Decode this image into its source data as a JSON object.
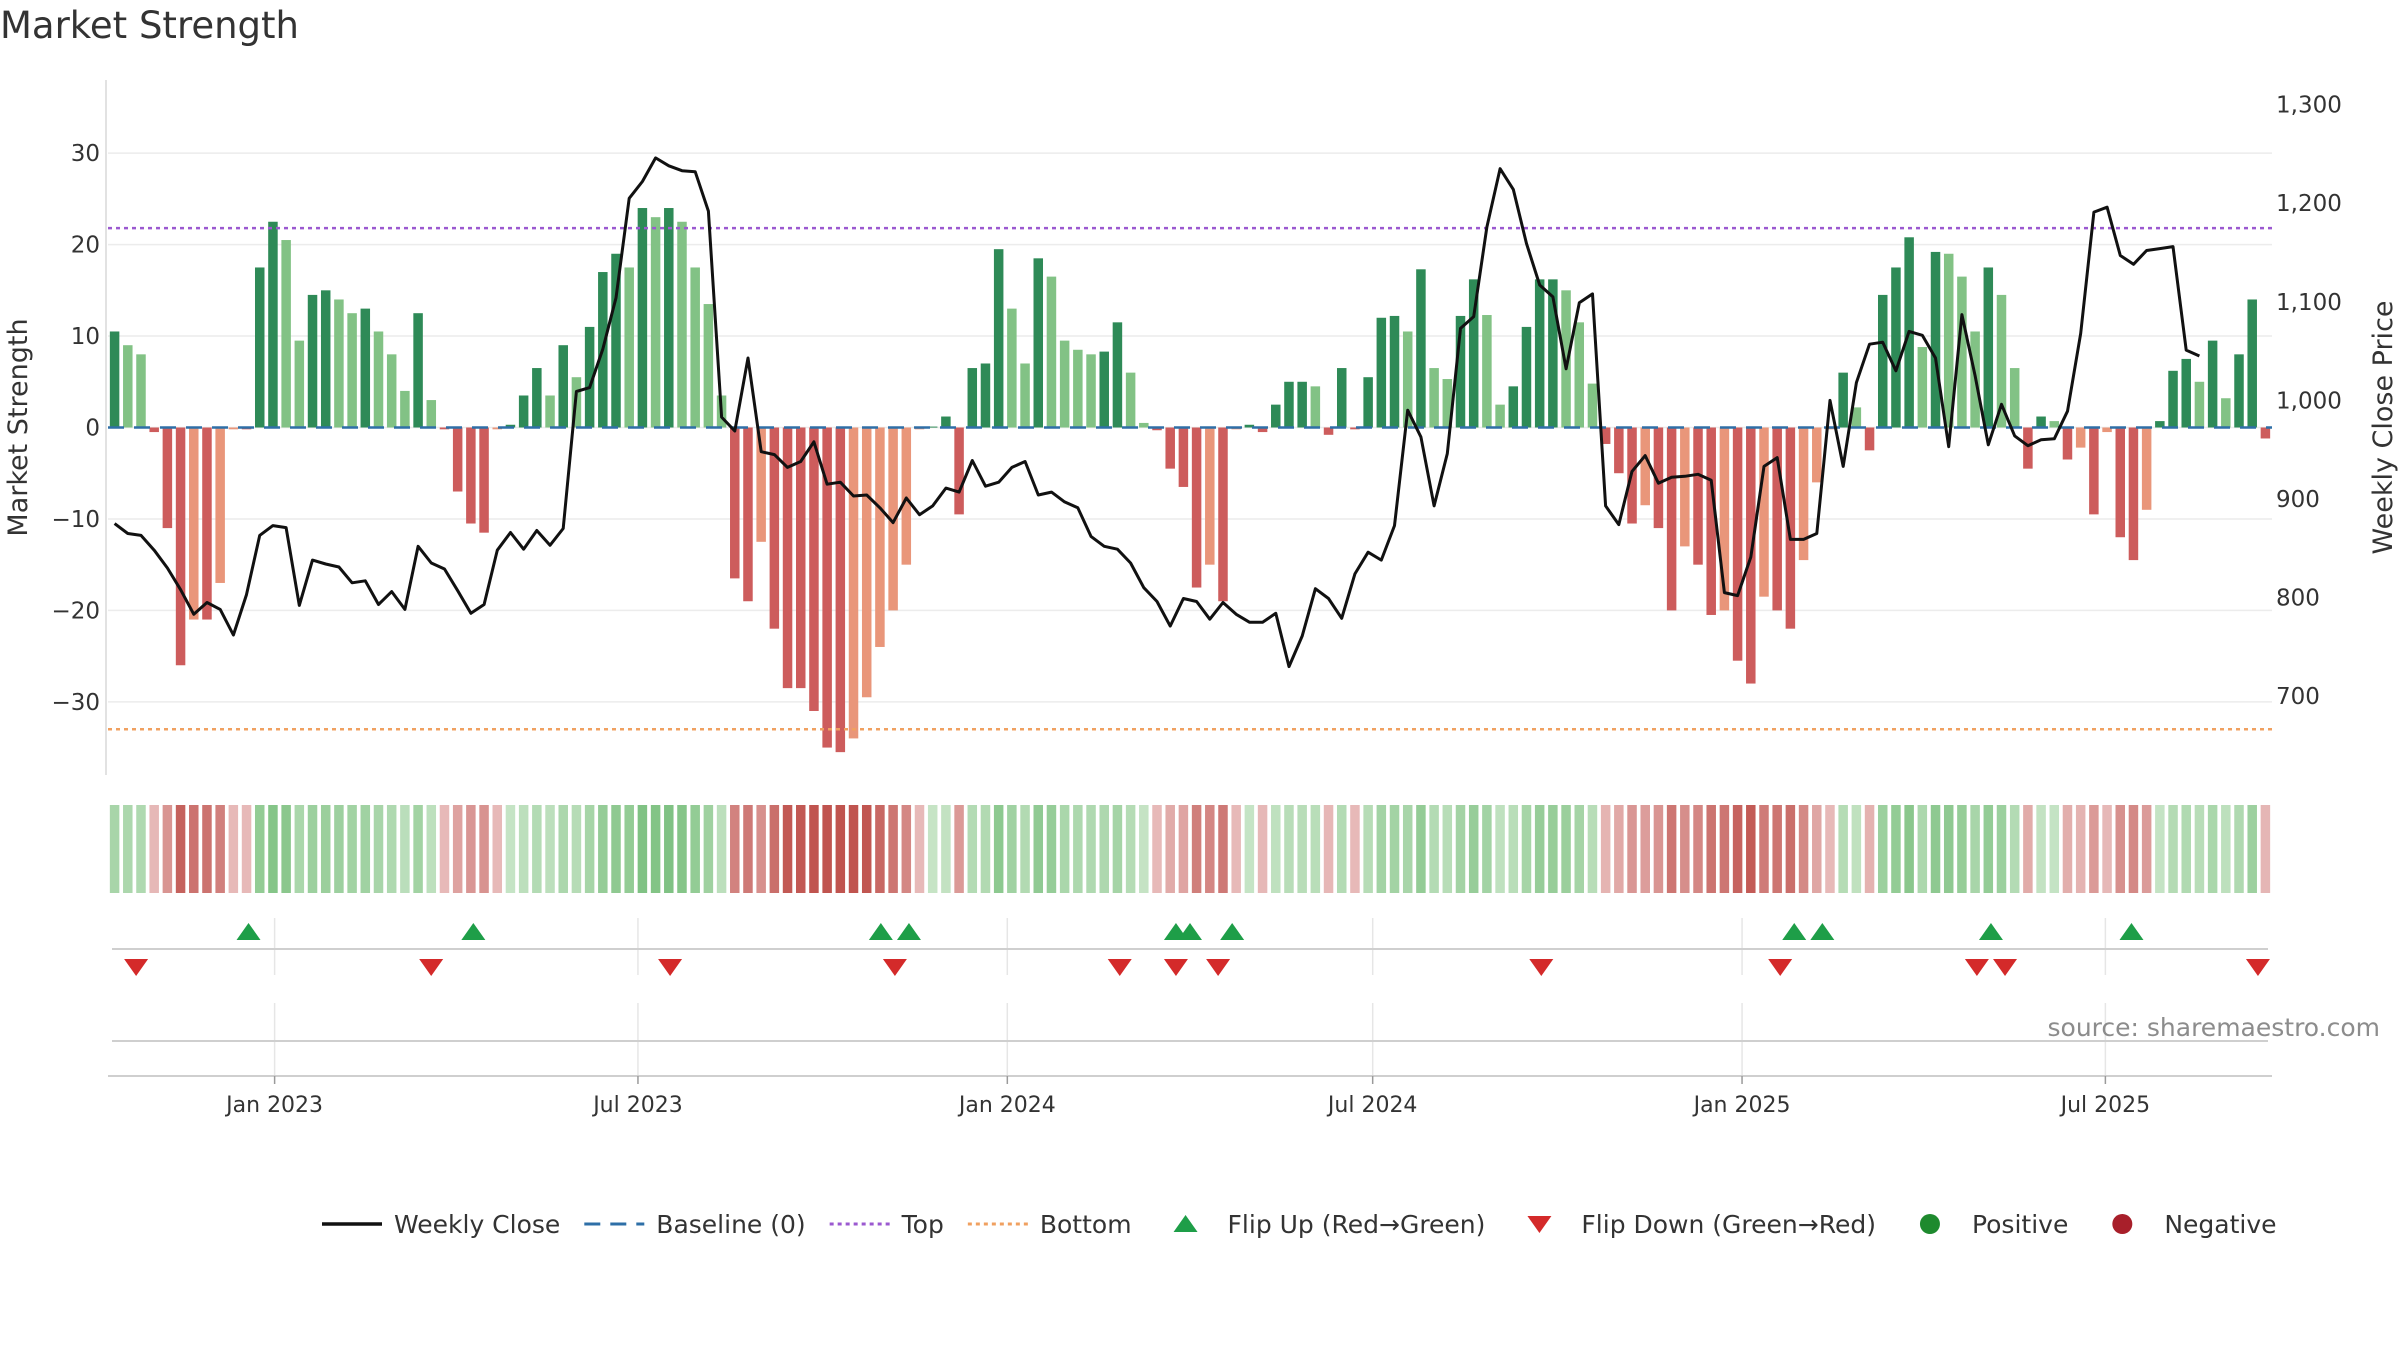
{
  "chart_data": {
    "type": "bar",
    "title": "Market Strength",
    "ylabel": "Market Strength",
    "y2label": "Weekly Close Price",
    "ylim": [
      -38,
      38
    ],
    "y_ticks": [
      30,
      20,
      10,
      0,
      -10,
      -20,
      -30
    ],
    "y_tick_labels": [
      "30",
      "20",
      "10",
      "0",
      "−10",
      "−20",
      "−30"
    ],
    "y2lim": [
      620,
      1325
    ],
    "y2_ticks": [
      1300,
      1200,
      1100,
      1000,
      900,
      800,
      700
    ],
    "y2_tick_labels": [
      "1,300",
      "1,200",
      "1,100",
      "1,000",
      "900",
      "800",
      "700"
    ],
    "top_line": 21.8,
    "bottom_line": -33,
    "x_start": "2022-10-10",
    "x_end": "2025-09-22",
    "x_ticks": [
      {
        "date": "2023-01-01",
        "label": "Jan 2023"
      },
      {
        "date": "2023-07-01",
        "label": "Jul 2023"
      },
      {
        "date": "2024-01-01",
        "label": "Jan 2024"
      },
      {
        "date": "2024-07-01",
        "label": "Jul 2024"
      },
      {
        "date": "2025-01-01",
        "label": "Jan 2025"
      },
      {
        "date": "2025-07-01",
        "label": "Jul 2025"
      }
    ],
    "strength": [
      10.5,
      9,
      8,
      -0.5,
      -11,
      -26,
      -21,
      -21,
      -17,
      -0.2,
      -0.2,
      17.5,
      22.5,
      20.5,
      9.5,
      14.5,
      15,
      14,
      12.5,
      13,
      10.5,
      8,
      4,
      12.5,
      3,
      -0.2,
      -7,
      -10.5,
      -11.5,
      -0.2,
      0.3,
      3.5,
      6.5,
      3.5,
      9,
      5.5,
      11,
      17,
      19,
      17.5,
      24,
      23,
      24,
      22.5,
      17.5,
      13.5,
      3.5,
      -16.5,
      -19,
      -12.5,
      -22,
      -28.5,
      -28.5,
      -31,
      -35,
      -35.5,
      -34,
      -29.5,
      -24,
      -20,
      -15,
      -0.2,
      0.1,
      1.2,
      -9.5,
      6.5,
      7,
      19.5,
      13,
      7,
      18.5,
      16.5,
      9.5,
      8.5,
      8,
      8.3,
      11.5,
      6,
      0.5,
      -0.3,
      -4.5,
      -6.5,
      -17.5,
      -15,
      -19,
      -0.2,
      0.3,
      -0.5,
      2.5,
      5,
      5,
      4.5,
      -0.8,
      6.5,
      -0.2,
      5.5,
      12,
      12.2,
      10.5,
      17.3,
      6.5,
      5.3,
      12.2,
      16.2,
      12.3,
      2.5,
      4.5,
      11,
      16.2,
      16.2,
      15,
      11.5,
      4.8,
      -1.8,
      -5,
      -10.5,
      -8.5,
      -11,
      -20,
      -13,
      -15,
      -20.5,
      -20,
      -25.5,
      -28,
      -18.5,
      -20,
      -22,
      -14.5,
      -6,
      -0.2,
      6,
      2.2,
      -2.5,
      14.5,
      17.5,
      20.8,
      8.8,
      19.2,
      19,
      16.5,
      10.5,
      17.5,
      14.5,
      6.5,
      -4.5,
      1.2,
      0.7,
      -3.5,
      -2.2,
      -9.5,
      -0.5,
      -12,
      -14.5,
      -9,
      0.7,
      6.2,
      7.5,
      5,
      9.5,
      3.2,
      8,
      14,
      -1.2
    ],
    "close": [
      875,
      865,
      863,
      848,
      830,
      808,
      783,
      795,
      788,
      762,
      803,
      863,
      873,
      871,
      792,
      838,
      834,
      831,
      815,
      817,
      793,
      806,
      788,
      852,
      835,
      829,
      807,
      784,
      793,
      848,
      866,
      849,
      868,
      853,
      870,
      1009,
      1013,
      1052,
      1104,
      1205,
      1222,
      1246,
      1238,
      1233,
      1232,
      1192,
      983,
      969,
      1043,
      948,
      945,
      932,
      938,
      958,
      915,
      917,
      903,
      904,
      891,
      876,
      901,
      884,
      893,
      911,
      907,
      939,
      913,
      917,
      932,
      938,
      904,
      907,
      897,
      891,
      862,
      852,
      849,
      835,
      810,
      796,
      771,
      799,
      796,
      778,
      795,
      783,
      775,
      775,
      784,
      730,
      761,
      809,
      799,
      779,
      824,
      846,
      838,
      873,
      990,
      963,
      893,
      946,
      1073,
      1085,
      1176,
      1235,
      1214,
      1159,
      1117,
      1105,
      1032,
      1099,
      1108,
      893,
      874,
      928,
      944,
      916,
      922,
      923,
      925,
      919,
      805,
      802,
      841,
      933,
      942,
      859,
      859,
      865,
      1000,
      933,
      1018,
      1057,
      1059,
      1030,
      1070,
      1066,
      1043,
      953,
      1087,
      1025,
      955,
      996,
      964,
      954,
      960,
      961,
      989,
      1068,
      1191,
      1196,
      1147,
      1138,
      1152,
      1154,
      1156,
      1051,
      1045
    ],
    "flip_up_dates": [
      "2022-12-19",
      "2023-04-10",
      "2023-10-30",
      "2023-11-13",
      "2024-03-25",
      "2024-04-01",
      "2024-04-22",
      "2025-01-27",
      "2025-02-10",
      "2025-05-05",
      "2025-07-14"
    ],
    "flip_down_dates": [
      "2022-10-24",
      "2023-03-20",
      "2023-07-17",
      "2023-11-06",
      "2024-02-26",
      "2024-03-25",
      "2024-04-15",
      "2024-09-23",
      "2025-01-20",
      "2025-04-28",
      "2025-05-12",
      "2025-09-15"
    ],
    "legend": [
      {
        "label": "Weekly Close",
        "symbol": "line",
        "color": "#111111"
      },
      {
        "label": "Baseline (0)",
        "symbol": "dash",
        "color": "#2e6fa7"
      },
      {
        "label": "Top",
        "symbol": "dot",
        "color": "#9b59d0"
      },
      {
        "label": "Bottom",
        "symbol": "dot",
        "color": "#f0a060"
      },
      {
        "label": "Flip Up (Red→Green)",
        "symbol": "tri-up",
        "color": "#1e9e48"
      },
      {
        "label": "Flip Down (Green→Red)",
        "symbol": "tri-down",
        "color": "#d42a2a"
      },
      {
        "label": "Positive",
        "symbol": "circle",
        "color": "#1e8a2e"
      },
      {
        "label": "Negative",
        "symbol": "circle",
        "color": "#a81f2a"
      }
    ],
    "colors": {
      "pos_strong": "#2e8a57",
      "pos_light": "#82c285",
      "neg_strong": "#cd5c5c",
      "neg_light": "#e9967a",
      "line": "#111111",
      "top": "#9b59d0",
      "bottom": "#f0a060",
      "baseline": "#2e6fa7",
      "grid": "#ececec"
    }
  },
  "source": "source: sharemaestro.com"
}
